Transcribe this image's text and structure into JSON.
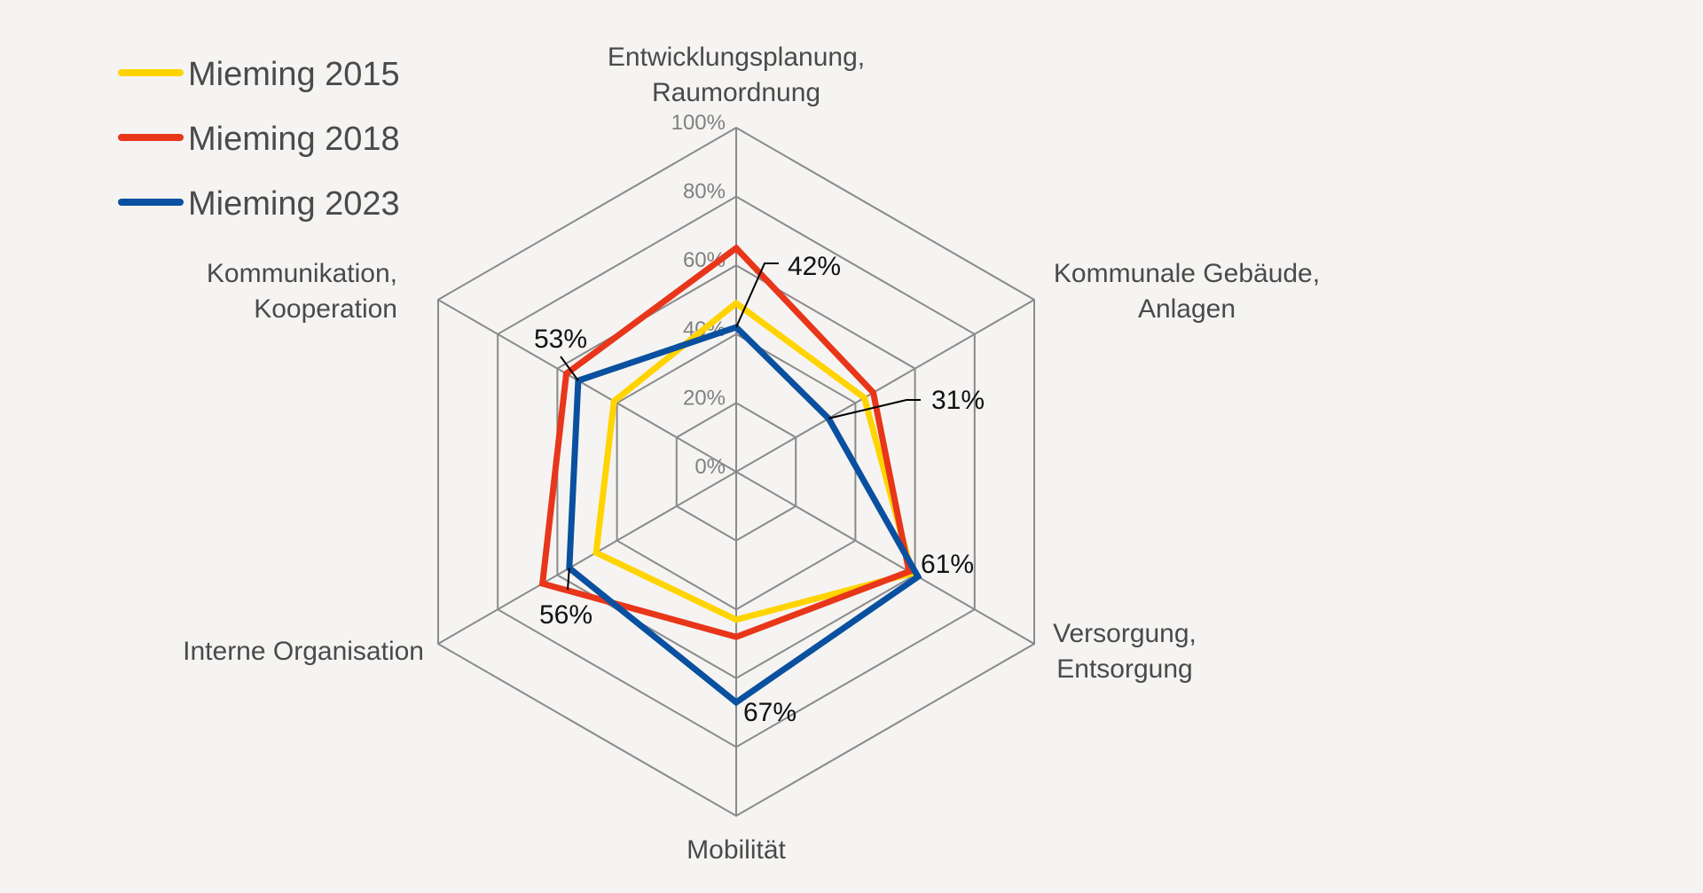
{
  "chart_data": {
    "type": "radar",
    "title": "",
    "axes": [
      "Entwicklungsplanung, Raumordnung",
      "Kommunale Gebäude, Anlagen",
      "Versorgung, Entsorgung",
      "Mobilität",
      "Interne Organisation",
      "Kommunikation, Kooperation"
    ],
    "axis_label_lines": [
      [
        "Entwicklungsplanung,",
        "Raumordnung"
      ],
      [
        "Kommunale Gebäude,",
        "Anlagen"
      ],
      [
        "Versorgung,",
        "Entsorgung"
      ],
      [
        "Mobilität"
      ],
      [
        "Interne Organisation"
      ],
      [
        "Kommunikation,",
        "Kooperation"
      ]
    ],
    "ticks": [
      "0%",
      "20%",
      "40%",
      "60%",
      "80%",
      "100%"
    ],
    "range": [
      0,
      100
    ],
    "unit": "%",
    "grid": true,
    "legend_position": "top-left",
    "series": [
      {
        "name": "Mieming 2015",
        "color": "#FFD400",
        "values": [
          49,
          43,
          59,
          43,
          47,
          41
        ]
      },
      {
        "name": "Mieming 2018",
        "color": "#E8361A",
        "values": [
          65,
          46,
          58,
          48,
          65,
          57
        ]
      },
      {
        "name": "Mieming 2023",
        "color": "#0A50A0",
        "values": [
          42,
          31,
          61,
          67,
          56,
          53
        ]
      }
    ],
    "data_labels": [
      {
        "series": "Mieming 2023",
        "axis": 0,
        "text": "42%"
      },
      {
        "series": "Mieming 2023",
        "axis": 1,
        "text": "31%"
      },
      {
        "series": "Mieming 2023",
        "axis": 2,
        "text": "61%"
      },
      {
        "series": "Mieming 2023",
        "axis": 3,
        "text": "67%"
      },
      {
        "series": "Mieming 2023",
        "axis": 4,
        "text": "56%"
      },
      {
        "series": "Mieming 2023",
        "axis": 5,
        "text": "53%"
      }
    ]
  }
}
